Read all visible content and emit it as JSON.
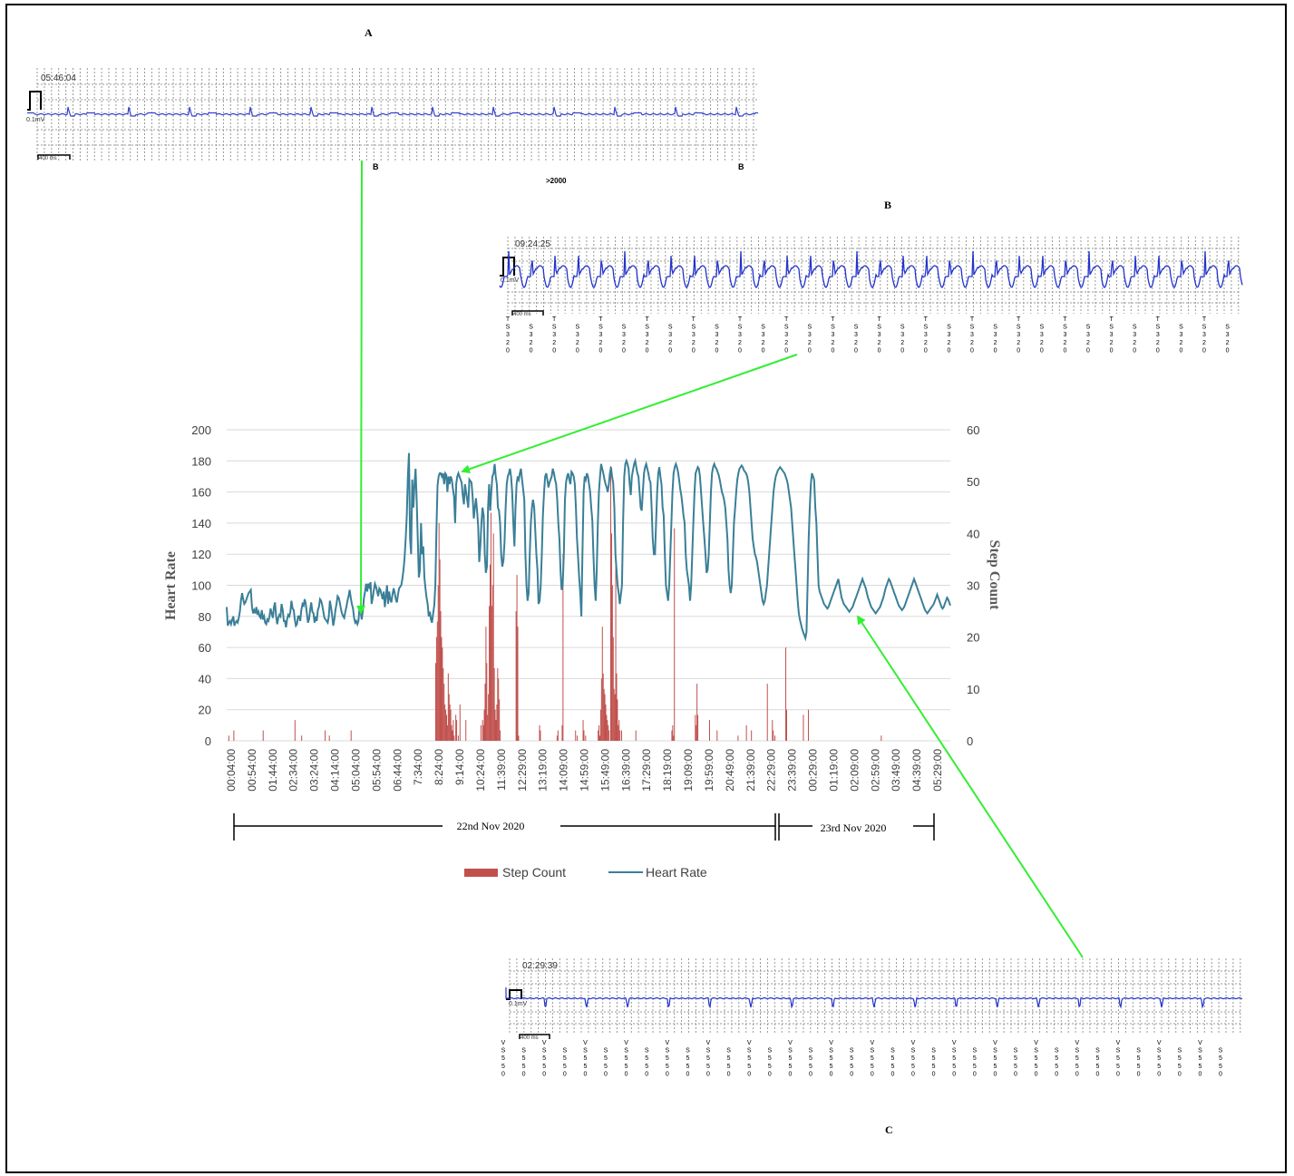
{
  "figure": {
    "panel_a_label": "A",
    "panel_b_label": "B",
    "panel_c_label": "C"
  },
  "ecg_strips": [
    {
      "id": "A",
      "time": "05:46:04",
      "amplitude_label": "0.1mV",
      "scale_label": "400 ms",
      "beat_labels": [
        "B",
        "B"
      ],
      "annotation": ">2000"
    },
    {
      "id": "B",
      "time": "09:24:25",
      "amplitude_label": "0.1mV",
      "scale_label": "400 ms",
      "beat_label": "T\nS\n3\n2\n0"
    },
    {
      "id": "C",
      "time": "02:29:39",
      "amplitude_label": "0.1mV",
      "scale_label": "400 ms",
      "beat_label": "V\nS\n5\n5\n0"
    }
  ],
  "chart_data": {
    "type": "bar+line",
    "y_left_label": "Heart Rate",
    "y_right_label": "Step Count",
    "ylim_left": [
      0,
      200
    ],
    "ylim_right": [
      0,
      60
    ],
    "yticks_left": [
      "0",
      "20",
      "40",
      "60",
      "80",
      "100",
      "120",
      "140",
      "160",
      "180",
      "200"
    ],
    "yticks_right": [
      "0",
      "10",
      "20",
      "30",
      "40",
      "50",
      "60"
    ],
    "xticks": [
      "00:04:00",
      "00:54:00",
      "01:44:00",
      "02:34:00",
      "03:24:00",
      "04:14:00",
      "05:04:00",
      "05:54:00",
      "06:44:00",
      "7:34:00",
      "8:24:00",
      "9:14:00",
      "10:24:00",
      "11:39:00",
      "12:29:00",
      "13:19:00",
      "14:09:00",
      "14:59:00",
      "15:49:00",
      "16:39:00",
      "17:29:00",
      "18:19:00",
      "19:09:00",
      "19:59:00",
      "20:49:00",
      "21:39:00",
      "22:29:00",
      "23:39:00",
      "00:29:00",
      "01:19:00",
      "02:09:00",
      "02:59:00",
      "03:49:00",
      "04:39:00",
      "05:29:00"
    ],
    "date_ranges": [
      "22nd Nov 2020",
      "23rd Nov 2020"
    ],
    "legend": [
      "Step Count",
      "Heart Rate"
    ],
    "legend_position": "bottom",
    "colors": {
      "heart_rate": "#3a7f97",
      "step_count": "#c0504d",
      "arrow": "#33ee33"
    },
    "grid": true,
    "heart_rate": [
      86,
      74,
      76,
      77,
      75,
      78,
      80,
      74,
      76,
      77,
      76,
      79,
      83,
      90,
      95,
      91,
      88,
      89,
      91,
      93,
      95,
      96,
      97,
      86,
      82,
      84,
      82,
      86,
      81,
      83,
      80,
      79,
      84,
      78,
      80,
      76,
      75,
      78,
      77,
      80,
      85,
      82,
      79,
      86,
      89,
      80,
      75,
      79,
      81,
      80,
      88,
      84,
      77,
      77,
      73,
      78,
      81,
      80,
      83,
      90,
      85,
      84,
      78,
      74,
      75,
      80,
      80,
      77,
      84,
      88,
      87,
      91,
      88,
      82,
      76,
      78,
      84,
      89,
      83,
      82,
      76,
      80,
      77,
      84,
      86,
      91,
      90,
      87,
      83,
      79,
      78,
      77,
      76,
      80,
      90,
      86,
      81,
      74,
      78,
      84,
      88,
      93,
      92,
      89,
      85,
      82,
      80,
      79,
      83,
      86,
      90,
      93,
      97,
      92,
      88,
      85,
      79,
      76,
      77,
      75,
      77,
      86,
      83,
      78,
      84,
      92,
      96,
      101,
      96,
      101,
      99,
      102,
      88,
      92,
      97,
      101,
      99,
      96,
      93,
      98,
      97,
      94,
      91,
      96,
      86,
      93,
      100,
      88,
      96,
      91,
      89,
      94,
      98,
      95,
      91,
      89,
      94,
      98,
      99,
      100,
      104,
      110,
      118,
      130,
      145,
      170,
      185,
      130,
      120,
      168,
      150,
      165,
      175,
      155,
      130,
      105,
      110,
      140,
      120,
      125,
      105,
      98,
      92,
      88,
      80,
      83,
      78,
      76,
      82,
      87,
      100,
      136,
      164,
      170,
      172,
      172,
      170,
      172,
      165,
      172,
      171,
      160,
      170,
      165,
      170,
      168,
      162,
      157,
      140,
      165,
      170,
      172,
      170,
      168,
      166,
      158,
      152,
      165,
      160,
      155,
      150,
      168,
      167,
      166,
      157,
      143,
      150,
      156,
      148,
      138,
      115,
      125,
      140,
      150,
      145,
      120,
      108,
      112,
      150,
      165,
      148,
      160,
      170,
      172,
      178,
      170,
      165,
      150,
      148,
      140,
      120,
      112,
      116,
      128,
      150,
      165,
      170,
      172,
      175,
      170,
      160,
      140,
      125,
      150,
      165,
      170,
      168,
      172,
      175,
      168,
      162,
      155,
      120,
      100,
      90,
      95,
      120,
      140,
      150,
      155,
      150,
      135,
      120,
      110,
      88,
      90,
      100,
      120,
      145,
      160,
      170,
      172,
      168,
      163,
      166,
      168,
      170,
      175,
      172,
      168,
      165,
      155,
      140,
      130,
      110,
      97,
      100,
      120,
      155,
      166,
      170,
      172,
      168,
      165,
      173,
      172,
      170,
      165,
      150,
      130,
      118,
      105,
      95,
      80,
      120,
      160,
      170,
      168,
      172,
      170,
      165,
      160,
      150,
      142,
      120,
      100,
      90,
      110,
      140,
      160,
      170,
      178,
      175,
      172,
      168,
      165,
      163,
      160,
      165,
      172,
      176,
      170,
      166,
      150,
      120,
      110,
      100,
      95,
      88,
      94,
      100,
      140,
      170,
      178,
      180,
      178,
      175,
      165,
      158,
      170,
      174,
      178,
      180,
      176,
      172,
      170,
      160,
      150,
      148,
      160,
      172,
      176,
      178,
      175,
      172,
      168,
      166,
      150,
      130,
      120,
      120,
      140,
      160,
      172,
      176,
      170,
      165,
      150,
      145,
      120,
      100,
      95,
      90,
      100,
      120,
      140,
      160,
      172,
      176,
      178,
      176,
      173,
      168,
      162,
      158,
      152,
      145,
      140,
      120,
      110,
      105,
      100,
      90,
      100,
      120,
      140,
      160,
      172,
      174,
      176,
      175,
      170,
      160,
      150,
      140,
      130,
      120,
      108,
      110,
      120,
      140,
      160,
      172,
      176,
      178,
      176,
      175,
      173,
      171,
      168,
      164,
      160,
      158,
      155,
      150,
      140,
      130,
      110,
      100,
      95,
      100,
      120,
      140,
      150,
      160,
      168,
      172,
      175,
      176,
      177,
      176,
      174,
      173,
      172,
      170,
      166,
      160,
      150,
      140,
      130,
      125,
      120,
      118,
      115,
      110,
      105,
      100,
      95,
      90,
      88,
      90,
      95,
      100,
      110,
      120,
      130,
      140,
      150,
      160,
      166,
      170,
      172,
      174,
      175,
      176,
      175,
      174,
      173,
      172,
      170,
      168,
      165,
      160,
      155,
      150,
      140,
      130,
      120,
      110,
      100,
      90,
      82,
      78,
      75,
      72,
      70,
      68,
      66,
      70,
      100,
      130,
      150,
      165,
      172,
      170,
      168,
      150,
      140,
      120,
      100,
      96,
      94,
      92,
      90,
      88,
      87,
      86,
      85,
      86,
      88,
      90,
      92,
      94,
      96,
      98,
      100,
      102,
      104,
      100,
      96,
      92,
      90,
      88,
      87,
      86,
      85,
      84,
      83,
      84,
      85,
      86,
      88,
      90,
      92,
      94,
      96,
      98,
      100,
      102,
      104,
      102,
      100,
      98,
      95,
      92,
      90,
      88,
      86,
      85,
      84,
      83,
      82,
      83,
      84,
      85,
      86,
      88,
      90,
      92,
      95,
      98,
      100,
      102,
      104,
      103,
      101,
      99,
      97,
      95,
      93,
      91,
      89,
      87,
      86,
      85,
      84,
      85,
      86,
      88,
      90,
      92,
      94,
      96,
      98,
      100,
      102,
      104,
      102,
      100,
      98,
      96,
      94,
      92,
      90,
      88,
      86,
      84,
      83,
      82,
      83,
      84,
      85,
      86,
      87,
      88,
      90,
      92,
      94,
      92,
      90,
      88,
      86,
      85,
      86,
      88,
      90,
      92,
      91,
      89,
      87
    ],
    "step_count": [
      0,
      0,
      1,
      0,
      0,
      0,
      0,
      0,
      2,
      0,
      0,
      0,
      0,
      0,
      0,
      0,
      0,
      0,
      0,
      0,
      0,
      0,
      0,
      0,
      0,
      0,
      0,
      0,
      0,
      0,
      0,
      0,
      0,
      0,
      0,
      0,
      0,
      0,
      0,
      0,
      0,
      0,
      0,
      2,
      0,
      0,
      0,
      0,
      0,
      0,
      0,
      0,
      0,
      0,
      0,
      0,
      0,
      0,
      0,
      0,
      0,
      0,
      0,
      0,
      0,
      0,
      0,
      0,
      0,
      0,
      0,
      0,
      0,
      0,
      0,
      0,
      0,
      0,
      0,
      0,
      0,
      4,
      0,
      0,
      0,
      0,
      0,
      0,
      0,
      1,
      0,
      0,
      0,
      0,
      0,
      0,
      0,
      0,
      0,
      0,
      0,
      0,
      0,
      0,
      0,
      0,
      0,
      0,
      0,
      0,
      0,
      0,
      0,
      0,
      0,
      0,
      0,
      2,
      0,
      0,
      0,
      0,
      1,
      0,
      0,
      0,
      0,
      0,
      0,
      0,
      0,
      0,
      0,
      0,
      0,
      0,
      0,
      0,
      0,
      0,
      0,
      0,
      0,
      0,
      0,
      0,
      0,
      0,
      2,
      0,
      0,
      0,
      0,
      0,
      0,
      0,
      0,
      0,
      0,
      0,
      0,
      0,
      0,
      0,
      0,
      0,
      0,
      0,
      0,
      0,
      0,
      0,
      0,
      0,
      0,
      0,
      0,
      0,
      0,
      0,
      0,
      0,
      0,
      0,
      0,
      0,
      0,
      0,
      0,
      0,
      0,
      0,
      0,
      0,
      0,
      0,
      0,
      0,
      0,
      0,
      0,
      0,
      0,
      0,
      0,
      0,
      0,
      0,
      0,
      0,
      0,
      0,
      0,
      0,
      0,
      0,
      0,
      0,
      0,
      0,
      0,
      0,
      0,
      0,
      0,
      0,
      0,
      0,
      0,
      0,
      0,
      0,
      0,
      0,
      0,
      0,
      0,
      0,
      0,
      0,
      0,
      0,
      0,
      0,
      0,
      0,
      0,
      0,
      0,
      15,
      20,
      23,
      30,
      42,
      35,
      25,
      20,
      18,
      14,
      11,
      7,
      6,
      5,
      3,
      13,
      9,
      7,
      6,
      3,
      2,
      4,
      1,
      0,
      5,
      4,
      0,
      1,
      0,
      7,
      0,
      0,
      0,
      0,
      0,
      0,
      4,
      0,
      0,
      0,
      0,
      0,
      0,
      0,
      0,
      0,
      0,
      0,
      0,
      0,
      0,
      0,
      0,
      0,
      3,
      0,
      4,
      3,
      6,
      11,
      22,
      15,
      5,
      9,
      26,
      34,
      44,
      26,
      30,
      40,
      14,
      6,
      4,
      7,
      14,
      12,
      8,
      2,
      0,
      0,
      0,
      0,
      0,
      0,
      0,
      0,
      0,
      0,
      0,
      0,
      0,
      0,
      0,
      0,
      0,
      0,
      25,
      32,
      22,
      1,
      0,
      0,
      0,
      0,
      0,
      0,
      0,
      0,
      0,
      0,
      0,
      0,
      0,
      0,
      0,
      0,
      0,
      0,
      0,
      0,
      0,
      0,
      0,
      0,
      3,
      2,
      0,
      0,
      0,
      0,
      0,
      0,
      0,
      0,
      0,
      0,
      0,
      0,
      0,
      0,
      0,
      0,
      0,
      0,
      0,
      1,
      2,
      0,
      0,
      0,
      0,
      3,
      36,
      0,
      0,
      0,
      0,
      0,
      0,
      0,
      0,
      0,
      0,
      0,
      0,
      0,
      0,
      2,
      0,
      1,
      0,
      0,
      0,
      0,
      0,
      0,
      4,
      2,
      0,
      1,
      0,
      0,
      0,
      0,
      0,
      0,
      0,
      0,
      0,
      0,
      0,
      0,
      0,
      0,
      2,
      3,
      1,
      6,
      12,
      22,
      13,
      10,
      9,
      7,
      5,
      4,
      3,
      2,
      0,
      53,
      40,
      30,
      20,
      10,
      9,
      34,
      13,
      8,
      3,
      4,
      2,
      0,
      2,
      0,
      0,
      0,
      0,
      0,
      0,
      0,
      0,
      0,
      0,
      0,
      0,
      0,
      0,
      0,
      0,
      2,
      0,
      0,
      0,
      0,
      0,
      0,
      0,
      0,
      0,
      0,
      0,
      0,
      0,
      0,
      0,
      0,
      0,
      0,
      0,
      0,
      0,
      0,
      0,
      0,
      0,
      0,
      0,
      0,
      0,
      0,
      0,
      0,
      0,
      0,
      0,
      0,
      0,
      0,
      0,
      0,
      0,
      0,
      2,
      3,
      1,
      41,
      0,
      0,
      0,
      0,
      0,
      0,
      0,
      0,
      0,
      0,
      0,
      0,
      0,
      0,
      0,
      0,
      0,
      0,
      0,
      0,
      0,
      0,
      0,
      0,
      5,
      3,
      11,
      5,
      0,
      0,
      0,
      0,
      0,
      0,
      0,
      0,
      0,
      0,
      0,
      0,
      0,
      4,
      0,
      0,
      0,
      0,
      0,
      0,
      0,
      0,
      2,
      0,
      0,
      0,
      0,
      0,
      0,
      0,
      0,
      0,
      0,
      0,
      0,
      0,
      0,
      0,
      0,
      0,
      0,
      0,
      0,
      0,
      0,
      0,
      0,
      1,
      0,
      0,
      0,
      0,
      0,
      0,
      0,
      0,
      0,
      3,
      0,
      0,
      0,
      0,
      0,
      2,
      0,
      0,
      0,
      0,
      0,
      0,
      0,
      0,
      0,
      0,
      0,
      0,
      0,
      0,
      0,
      0,
      0,
      0,
      11,
      0,
      0,
      0,
      0,
      0,
      4,
      2,
      0,
      1,
      0,
      0,
      0,
      0,
      0,
      0,
      0,
      0,
      0,
      0,
      0,
      0,
      18,
      6,
      0,
      0,
      0,
      0,
      0,
      0,
      0,
      0,
      0,
      0,
      0,
      0,
      0,
      0,
      0,
      0,
      0,
      0,
      0,
      5,
      0,
      0,
      0,
      0,
      0,
      6,
      0,
      0,
      0,
      0,
      0,
      0,
      0,
      0,
      0,
      0,
      0,
      0,
      0,
      0,
      0,
      0,
      0,
      0,
      0,
      0,
      0,
      0,
      0,
      0,
      0,
      0,
      0,
      0,
      0,
      0,
      0,
      0,
      0,
      0,
      0,
      0,
      0,
      0,
      0,
      0,
      0,
      0,
      0,
      0,
      0,
      0,
      0,
      0,
      0,
      0,
      0,
      0,
      0,
      0,
      0,
      0,
      0,
      0,
      0,
      0,
      0,
      0,
      0,
      0,
      0,
      0,
      0,
      0,
      0,
      0,
      0,
      0,
      0,
      0,
      0,
      0,
      0,
      0,
      0,
      0,
      0,
      0,
      0,
      0,
      0,
      0,
      1,
      0,
      0,
      0,
      0,
      0,
      0,
      0,
      0,
      0,
      0,
      0,
      0,
      0,
      0,
      0,
      0,
      0,
      0,
      0,
      0,
      0,
      0,
      0,
      0,
      0,
      0,
      0,
      0,
      0,
      0,
      0,
      0,
      0,
      0,
      0,
      0,
      0,
      0,
      0,
      0,
      0,
      0,
      0,
      0,
      0,
      0,
      0,
      0,
      0,
      0,
      0,
      0,
      0,
      0,
      0,
      0,
      0,
      0,
      0,
      0,
      0,
      0,
      0,
      0,
      0,
      0,
      0,
      0,
      0,
      0,
      0,
      0,
      0,
      0,
      0,
      0,
      0,
      0,
      0,
      0,
      0,
      0
    ]
  }
}
